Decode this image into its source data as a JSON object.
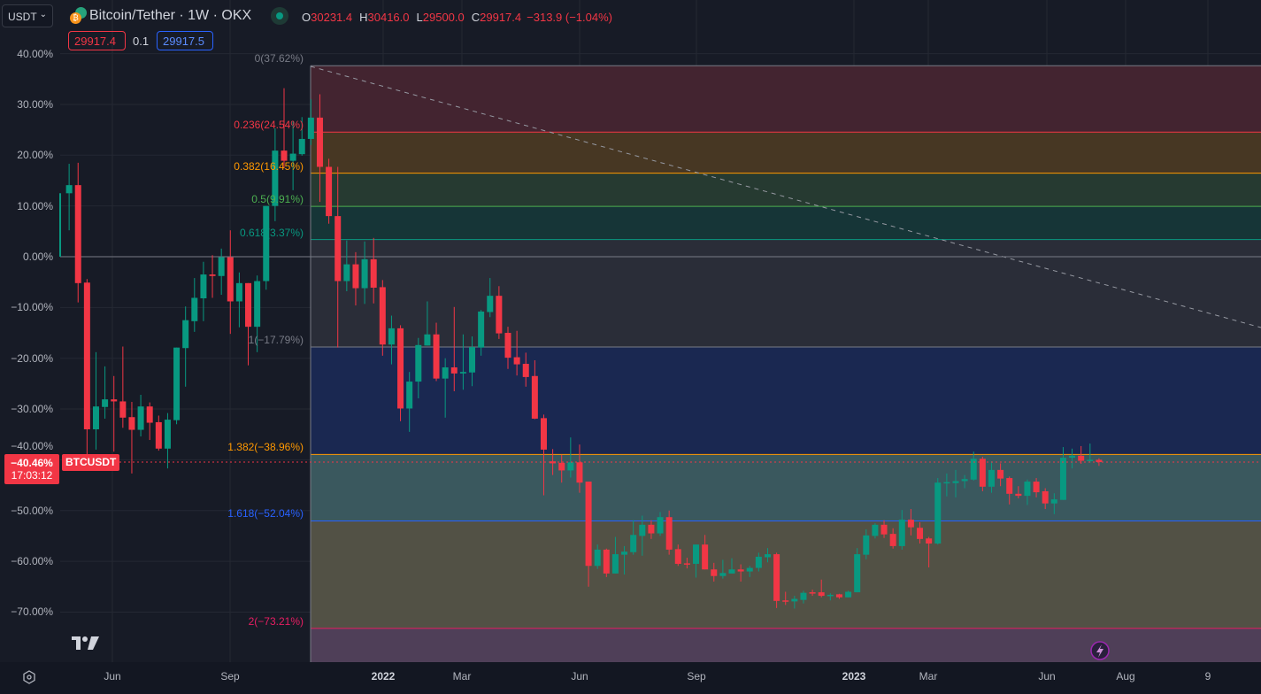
{
  "header": {
    "currency_select": "USDT",
    "symbol_title": "Bitcoin/Tether · 1W · OKX",
    "ohlc": {
      "o_label": "O",
      "o_value": "30231.4",
      "h_label": "H",
      "h_value": "30416.0",
      "l_label": "L",
      "l_value": "29500.0",
      "c_label": "C",
      "c_value": "29917.4",
      "change": "−313.9 (−1.04%)"
    },
    "sell_price": "29917.4",
    "spread": "0.1",
    "buy_price": "29917.5"
  },
  "price_axis": {
    "labels": [
      "40.00%",
      "30.00%",
      "20.00%",
      "10.00%",
      "0.00%",
      "−10.00%",
      "−20.00%",
      "−30.00%",
      "−40.00%",
      "−50.00%",
      "−60.00%",
      "−70.00%"
    ],
    "current_label": {
      "value": "−40.46%",
      "countdown": "17:03:12",
      "symbol": "BTCUSDT"
    }
  },
  "time_axis": {
    "labels": [
      "Jun",
      "Sep",
      "2022",
      "Mar",
      "Jun",
      "Sep",
      "2023",
      "Mar",
      "Jun",
      "Aug",
      "9"
    ]
  },
  "fib_levels": [
    {
      "label": "0(37.62%)",
      "ratio": 0,
      "pct": 37.62,
      "color": "#787b86",
      "fill": "#432430"
    },
    {
      "label": "0.236(24.54%)",
      "ratio": 0.236,
      "pct": 24.54,
      "color": "#f23645",
      "fill": "#473723"
    },
    {
      "label": "0.382(16.45%)",
      "ratio": 0.382,
      "pct": 16.45,
      "color": "#ff9800",
      "fill": "#263a31"
    },
    {
      "label": "0.5(9.91%)",
      "ratio": 0.5,
      "pct": 9.91,
      "color": "#4caf50",
      "fill": "#163537"
    },
    {
      "label": "0.618(3.37%)",
      "ratio": 0.618,
      "pct": 3.37,
      "color": "#089981",
      "fill": "#2a2d38"
    },
    {
      "label": "1(−17.79%)",
      "ratio": 1,
      "pct": -17.79,
      "color": "#787b86",
      "fill": "#1a2851"
    },
    {
      "label": "1.382(−38.96%)",
      "ratio": 1.382,
      "pct": -38.96,
      "color": "#ff9800",
      "fill": "#3a585e"
    },
    {
      "label": "1.618(−52.04%)",
      "ratio": 1.618,
      "pct": -52.04,
      "color": "#2962ff",
      "fill": "#525145"
    },
    {
      "label": "2(−73.21%)",
      "ratio": 2,
      "pct": -73.21,
      "color": "#e91e63",
      "fill": "#4f3f58"
    }
  ],
  "colors": {
    "up": "#089981",
    "down": "#f23645",
    "background": "#171b26",
    "grid": "#242833"
  },
  "icons": {
    "logo": "tradingview-logo-icon",
    "settings": "gear-icon",
    "lightning": "lightning-icon",
    "symbol": "btc-usdt-icon",
    "market_status": "market-open-dot-icon"
  },
  "chart_data": {
    "type": "candlestick",
    "interval": "1W",
    "y_scale": "percent",
    "ylim": [
      -80,
      42
    ],
    "current_value": -40.46,
    "ohlc_pct": [
      [
        0,
        12.5,
        0,
        12.5
      ],
      [
        12.5,
        18.3,
        5.2,
        14.1
      ],
      [
        14.1,
        18.5,
        -9,
        -5.2
      ],
      [
        -5.1,
        -4.4,
        -41,
        -34
      ],
      [
        -34,
        -18.8,
        -38,
        -29.5
      ],
      [
        -29.6,
        -21.6,
        -31.9,
        -28.1
      ],
      [
        -28.1,
        -23.5,
        -38.4,
        -28.5
      ],
      [
        -28.5,
        -17.7,
        -33.7,
        -31.7
      ],
      [
        -31.6,
        -28.6,
        -42.7,
        -34.1
      ],
      [
        -34.1,
        -27.2,
        -35.4,
        -29.5
      ],
      [
        -29.5,
        -28.7,
        -36.1,
        -32.7
      ],
      [
        -32.6,
        -31.3,
        -38.2,
        -37.8
      ],
      [
        -37.8,
        -30.8,
        -41.7,
        -32.1
      ],
      [
        -32.2,
        -17.9,
        -33,
        -17.9
      ],
      [
        -18,
        -9.8,
        -25.6,
        -12.5
      ],
      [
        -12.7,
        -4.2,
        -14.8,
        -8.1
      ],
      [
        -8.2,
        -1,
        -12.7,
        -3.5
      ],
      [
        -3.5,
        0.3,
        -8.1,
        -3.8
      ],
      [
        -3.8,
        1.6,
        -7.5,
        -0.1
      ],
      [
        -0.1,
        5.2,
        -15.2,
        -8.8
      ],
      [
        -8.8,
        -3.1,
        -13.9,
        -5.2
      ],
      [
        -5.2,
        -5.2,
        -21.4,
        -13.8
      ],
      [
        -13.8,
        -3.7,
        -18.8,
        -4.8
      ],
      [
        -4.8,
        10,
        -6.5,
        10
      ],
      [
        10,
        25.3,
        7,
        20.9
      ],
      [
        20.9,
        33.2,
        17.4,
        18.9
      ],
      [
        18.9,
        26.7,
        13.1,
        20.3
      ],
      [
        20.2,
        27.5,
        19.9,
        23.2
      ],
      [
        23.2,
        31,
        22,
        27.4
      ],
      [
        27.4,
        32,
        10.8,
        17.7
      ],
      [
        17.7,
        19.3,
        6.5,
        8
      ],
      [
        8,
        17.7,
        -17.9,
        -4.8
      ],
      [
        -4.8,
        3.2,
        -6.8,
        -1.5
      ],
      [
        -1.5,
        0.9,
        -9.6,
        -6.2
      ],
      [
        -6.2,
        3,
        -9.3,
        -0.5
      ],
      [
        -0.5,
        3.7,
        -9.2,
        -6.1
      ],
      [
        -6,
        -4.6,
        -19.5,
        -17.3
      ],
      [
        -17.3,
        -11.6,
        -21.2,
        -14.1
      ],
      [
        -14.1,
        -13.5,
        -32.4,
        -29.9
      ],
      [
        -29.9,
        -22.7,
        -34.5,
        -24.6
      ],
      [
        -24.6,
        -16,
        -27.9,
        -17.4
      ],
      [
        -17.5,
        -8.8,
        -17.5,
        -15.3
      ],
      [
        -15.3,
        -13,
        -24.5,
        -24
      ],
      [
        -24,
        -20,
        -31.7,
        -21.8
      ],
      [
        -21.8,
        -9.9,
        -26.5,
        -23
      ],
      [
        -23,
        -15.3,
        -26.2,
        -22.7
      ],
      [
        -22.8,
        -15.7,
        -25.5,
        -17.8
      ],
      [
        -17.9,
        -10.5,
        -19.5,
        -10.8
      ],
      [
        -10.9,
        -4.2,
        -11.9,
        -7.7
      ],
      [
        -7.7,
        -5.8,
        -16.2,
        -15.1
      ],
      [
        -15,
        -13.8,
        -22.1,
        -19.9
      ],
      [
        -19.8,
        -14.6,
        -23.4,
        -21.2
      ],
      [
        -21.1,
        -18.9,
        -25.6,
        -23.7
      ],
      [
        -23.5,
        -20.4,
        -32,
        -31.9
      ],
      [
        -31.8,
        -31.1,
        -47,
        -38
      ],
      [
        -40.3,
        -37.9,
        -43,
        -40.7
      ],
      [
        -40.6,
        -39,
        -44.5,
        -42.1
      ],
      [
        -42.1,
        -35.6,
        -43.5,
        -40.5
      ],
      [
        -40.5,
        -37,
        -46.5,
        -44.5
      ],
      [
        -44.3,
        -44.3,
        -65,
        -60.9
      ],
      [
        -60.9,
        -56.7,
        -61.5,
        -57.7
      ],
      [
        -57.7,
        -57.5,
        -63.1,
        -62.4
      ],
      [
        -62.4,
        -55.2,
        -62.4,
        -58.6
      ],
      [
        -58.7,
        -57,
        -62.6,
        -58.1
      ],
      [
        -58.2,
        -51.9,
        -58.7,
        -54.8
      ],
      [
        -55,
        -51,
        -58.9,
        -52.8
      ],
      [
        -52.8,
        -51.9,
        -55.6,
        -54.5
      ],
      [
        -54.5,
        -50.3,
        -55,
        -51.3
      ],
      [
        -51.3,
        -50,
        -58.7,
        -57.7
      ],
      [
        -57.6,
        -56.7,
        -60.9,
        -60.5
      ],
      [
        -60.4,
        -59.3,
        -61.4,
        -60.5
      ],
      [
        -60.5,
        -56.7,
        -63.2,
        -56.7
      ],
      [
        -56.7,
        -54.8,
        -61.6,
        -61.6
      ],
      [
        -61.6,
        -60.3,
        -64,
        -62.9
      ],
      [
        -62.9,
        -59.7,
        -63.4,
        -62.3
      ],
      [
        -62.4,
        -59.4,
        -62.4,
        -61.6
      ],
      [
        -61.6,
        -60.6,
        -64,
        -62
      ],
      [
        -62,
        -60.9,
        -63.1,
        -61.3
      ],
      [
        -61.3,
        -58.3,
        -62,
        -59.1
      ],
      [
        -59.2,
        -57.4,
        -60.2,
        -58.6
      ],
      [
        -58.6,
        -58.3,
        -69.2,
        -67.8
      ],
      [
        -67.7,
        -66,
        -68.6,
        -67.9
      ],
      [
        -67.9,
        -66.8,
        -69.3,
        -67.4
      ],
      [
        -67.6,
        -65.8,
        -68.3,
        -66.2
      ],
      [
        -66.1,
        -65.6,
        -66.8,
        -66.2
      ],
      [
        -66.1,
        -63.6,
        -67.1,
        -66.8
      ],
      [
        -66.8,
        -66.3,
        -67.7,
        -66.6
      ],
      [
        -66.5,
        -66.4,
        -67.4,
        -67.1
      ],
      [
        -67.1,
        -65.8,
        -67.1,
        -66
      ],
      [
        -66.1,
        -57.4,
        -66.1,
        -58.6
      ],
      [
        -58.7,
        -53.7,
        -59.6,
        -54.9
      ],
      [
        -55,
        -52.5,
        -55.5,
        -52.8
      ],
      [
        -52.8,
        -51.9,
        -55.4,
        -54.7
      ],
      [
        -54.6,
        -53.5,
        -57.5,
        -57
      ],
      [
        -57,
        -49.9,
        -57.7,
        -51.8
      ],
      [
        -51.8,
        -49.7,
        -54.9,
        -53.3
      ],
      [
        -53.4,
        -52.3,
        -56.5,
        -55.6
      ],
      [
        -55.5,
        -55.2,
        -61.2,
        -56.5
      ],
      [
        -56.5,
        -43.6,
        -56.7,
        -44.5
      ],
      [
        -44.5,
        -42.7,
        -47.2,
        -44.4
      ],
      [
        -44.6,
        -42,
        -47.4,
        -44.2
      ],
      [
        -44.2,
        -43,
        -45.6,
        -43.8
      ],
      [
        -43.9,
        -38.4,
        -44.1,
        -39.8
      ],
      [
        -39.8,
        -39.4,
        -46.2,
        -45.3
      ],
      [
        -45.3,
        -40.3,
        -46.5,
        -42
      ],
      [
        -42,
        -40.7,
        -45.2,
        -43.7
      ],
      [
        -43.6,
        -43.3,
        -48.8,
        -46.7
      ],
      [
        -46.7,
        -45.2,
        -47.6,
        -47.1
      ],
      [
        -47.1,
        -43.9,
        -48.9,
        -44.3
      ],
      [
        -44.3,
        -43.6,
        -47.4,
        -46.4
      ],
      [
        -46.2,
        -45.6,
        -49.7,
        -48.6
      ],
      [
        -48.6,
        -46.6,
        -50.7,
        -47.8
      ],
      [
        -47.9,
        -37.5,
        -47.9,
        -39.6
      ],
      [
        -39.6,
        -37.8,
        -41.7,
        -39.2
      ],
      [
        -39.2,
        -37.3,
        -40.8,
        -40.2
      ],
      [
        -40.2,
        -36.8,
        -40.6,
        -40
      ],
      [
        -40,
        -39.7,
        -41.2,
        -40.46
      ]
    ]
  }
}
